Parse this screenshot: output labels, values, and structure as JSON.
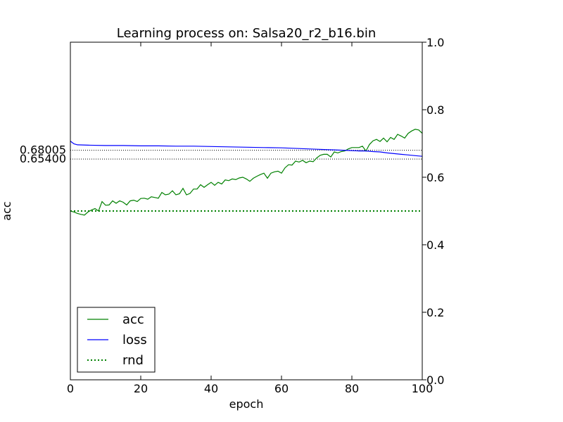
{
  "chart_data": {
    "type": "line",
    "title": "Learning process on: Salsa20_r2_b16.bin",
    "xlabel": "epoch",
    "ylabel": "acc",
    "xlim": [
      0,
      100
    ],
    "ylim": [
      0,
      1
    ],
    "x_ticks": [
      "0",
      "20",
      "40",
      "60",
      "80",
      "100"
    ],
    "y_ticks_right": [
      "0.0",
      "0.2",
      "0.4",
      "0.6",
      "0.8",
      "1.0"
    ],
    "grid": false,
    "legend_position": "lower-left",
    "reference_lines": [
      {
        "label": "0.68005",
        "value": 0.68005
      },
      {
        "label": "0.65400",
        "value": 0.654
      }
    ],
    "series": [
      {
        "name": "acc",
        "color": "#008000",
        "style": "solid",
        "x": [
          0,
          1,
          2,
          3,
          4,
          5,
          6,
          7,
          8,
          9,
          10,
          11,
          12,
          13,
          14,
          15,
          16,
          17,
          18,
          19,
          20,
          21,
          22,
          23,
          24,
          25,
          26,
          27,
          28,
          29,
          30,
          31,
          32,
          33,
          34,
          35,
          36,
          37,
          38,
          39,
          40,
          41,
          42,
          43,
          44,
          45,
          46,
          47,
          48,
          49,
          50,
          51,
          52,
          53,
          54,
          55,
          56,
          57,
          58,
          59,
          60,
          61,
          62,
          63,
          64,
          65,
          66,
          67,
          68,
          69,
          70,
          71,
          72,
          73,
          74,
          75,
          76,
          77,
          78,
          79,
          80,
          81,
          82,
          83,
          84,
          85,
          86,
          87,
          88,
          89,
          90,
          91,
          92,
          93,
          94,
          95,
          96,
          97,
          98,
          99,
          100
        ],
        "values": [
          0.5,
          0.497,
          0.493,
          0.49,
          0.488,
          0.497,
          0.503,
          0.507,
          0.5,
          0.528,
          0.517,
          0.518,
          0.53,
          0.523,
          0.53,
          0.526,
          0.518,
          0.53,
          0.532,
          0.528,
          0.537,
          0.538,
          0.535,
          0.542,
          0.54,
          0.538,
          0.555,
          0.548,
          0.55,
          0.56,
          0.548,
          0.551,
          0.567,
          0.548,
          0.552,
          0.565,
          0.565,
          0.578,
          0.57,
          0.578,
          0.585,
          0.576,
          0.585,
          0.58,
          0.592,
          0.59,
          0.595,
          0.593,
          0.598,
          0.6,
          0.595,
          0.588,
          0.597,
          0.603,
          0.608,
          0.612,
          0.597,
          0.612,
          0.616,
          0.618,
          0.612,
          0.628,
          0.637,
          0.636,
          0.648,
          0.645,
          0.65,
          0.643,
          0.648,
          0.646,
          0.657,
          0.665,
          0.668,
          0.668,
          0.66,
          0.675,
          0.672,
          0.676,
          0.678,
          0.684,
          0.688,
          0.688,
          0.688,
          0.692,
          0.678,
          0.697,
          0.708,
          0.712,
          0.706,
          0.716,
          0.705,
          0.718,
          0.712,
          0.727,
          0.722,
          0.716,
          0.73,
          0.737,
          0.742,
          0.74,
          0.73
        ]
      },
      {
        "name": "loss",
        "color": "#0000ff",
        "style": "solid",
        "x": [
          0,
          1,
          2,
          5,
          10,
          15,
          20,
          25,
          30,
          35,
          40,
          45,
          50,
          55,
          60,
          65,
          70,
          75,
          80,
          82,
          84,
          86,
          88,
          90,
          92,
          94,
          96,
          98,
          100
        ],
        "values": [
          0.707,
          0.699,
          0.696,
          0.695,
          0.694,
          0.694,
          0.693,
          0.693,
          0.692,
          0.692,
          0.691,
          0.69,
          0.689,
          0.688,
          0.687,
          0.685,
          0.683,
          0.681,
          0.679,
          0.678,
          0.678,
          0.676,
          0.675,
          0.672,
          0.67,
          0.668,
          0.666,
          0.664,
          0.662
        ]
      },
      {
        "name": "rnd",
        "color": "#008000",
        "style": "dotted",
        "x": [
          0,
          100
        ],
        "values": [
          0.5,
          0.5
        ]
      }
    ]
  }
}
